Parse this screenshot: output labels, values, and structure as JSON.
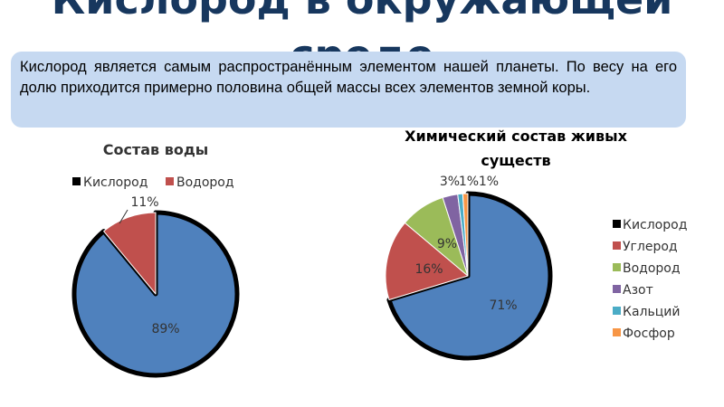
{
  "slide": {
    "title_line1": "Кислород в окружающей",
    "title_line2": "среде",
    "callout_text": "Кислород является самым распространённым элементом нашей планеты. По весу на его долю приходится примерно половина общей массы всех элементов земной коры."
  },
  "colors": {
    "title": "#17375e",
    "callout_bg": "#c6d9f1",
    "oxygen": "#4f81bd",
    "carbon": "#c0504d",
    "hydrogen": "#9bbb59",
    "nitrogen": "#8064a2",
    "calcium": "#4bacc6",
    "phosphorus": "#f79646"
  },
  "chart_data": [
    {
      "type": "pie",
      "title": "Состав воды",
      "legend_position": "top",
      "slices": [
        {
          "label": "Кислород",
          "value": 89,
          "display": "89%",
          "color": "#4f81bd",
          "highlighted": true
        },
        {
          "label": "Водород",
          "value": 11,
          "display": "11%",
          "color": "#c0504d",
          "highlighted": false
        }
      ]
    },
    {
      "type": "pie",
      "title": "Химический состав живых существ",
      "title_line1": "Химический состав живых",
      "title_line2": "существ",
      "legend_position": "right",
      "slices": [
        {
          "label": "Кислород",
          "value": 71,
          "display": "71%",
          "color": "#4f81bd",
          "highlighted": true
        },
        {
          "label": "Углерод",
          "value": 16,
          "display": "16%",
          "color": "#c0504d",
          "highlighted": false
        },
        {
          "label": "Водород",
          "value": 9,
          "display": "9%",
          "color": "#9bbb59",
          "highlighted": false
        },
        {
          "label": "Азот",
          "value": 3,
          "display": "3%",
          "color": "#8064a2",
          "highlighted": false
        },
        {
          "label": "Кальций",
          "value": 1,
          "display": "1%",
          "color": "#4bacc6",
          "highlighted": false
        },
        {
          "label": "Фосфор",
          "value": 1,
          "display": "1%",
          "color": "#f79646",
          "highlighted": false
        }
      ]
    }
  ]
}
